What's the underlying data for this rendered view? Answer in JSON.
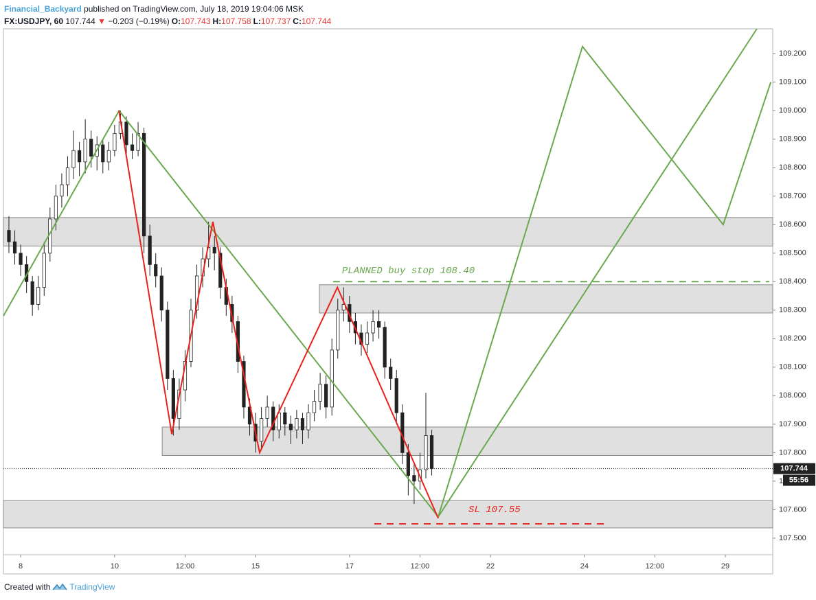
{
  "header": {
    "author": "Financial_Backyard",
    "published": "published on TradingView.com, July 18, 2019 19:04:06 MSK",
    "symbol": "FX:USDJPY, 60",
    "last": "107.744",
    "change": "−0.203 (−0.19%)",
    "quote": [
      {
        "label": "O:",
        "value": "107.743"
      },
      {
        "label": "H:",
        "value": "107.758"
      },
      {
        "label": "L:",
        "value": "107.737"
      },
      {
        "label": "C:",
        "value": "107.744"
      }
    ]
  },
  "footer": {
    "text": "Created with",
    "brand": "TradingView"
  },
  "chart_data": {
    "type": "candlestick",
    "xlim": [
      -8.8,
      384.2
    ],
    "ylim": [
      107.442,
      109.287
    ],
    "grid": false,
    "xticks": [
      {
        "value": 0,
        "label": "8"
      },
      {
        "value": 48,
        "label": "10"
      },
      {
        "value": 84,
        "label": "12:00"
      },
      {
        "value": 120,
        "label": "15"
      },
      {
        "value": 168,
        "label": "17"
      },
      {
        "value": 204,
        "label": "12:00"
      },
      {
        "value": 240,
        "label": "22"
      },
      {
        "value": 288,
        "label": "24"
      },
      {
        "value": 324,
        "label": "12:00"
      },
      {
        "value": 360,
        "label": "29"
      }
    ],
    "yticks": [
      {
        "value": 107.5,
        "label": "107.500"
      },
      {
        "value": 107.6,
        "label": "107.600"
      },
      {
        "value": 107.7,
        "label": "107.700"
      },
      {
        "value": 107.8,
        "label": "107.800"
      },
      {
        "value": 107.9,
        "label": "107.900"
      },
      {
        "value": 108.0,
        "label": "108.000"
      },
      {
        "value": 108.1,
        "label": "108.100"
      },
      {
        "value": 108.2,
        "label": "108.200"
      },
      {
        "value": 108.3,
        "label": "108.300"
      },
      {
        "value": 108.4,
        "label": "108.400"
      },
      {
        "value": 108.5,
        "label": "108.500"
      },
      {
        "value": 108.6,
        "label": "108.600"
      },
      {
        "value": 108.7,
        "label": "108.700"
      },
      {
        "value": 108.8,
        "label": "108.800"
      },
      {
        "value": 108.9,
        "label": "108.900"
      },
      {
        "value": 109.0,
        "label": "109.000"
      },
      {
        "value": 109.1,
        "label": "109.100"
      },
      {
        "value": 109.2,
        "label": "109.200"
      }
    ],
    "x": [
      -6,
      -3,
      0,
      3,
      6,
      9,
      12,
      15,
      18,
      21,
      24,
      27,
      30,
      33,
      36,
      39,
      42,
      45,
      48,
      51,
      54,
      57,
      60,
      63,
      66,
      69,
      72,
      75,
      78,
      81,
      84,
      87,
      90,
      93,
      96,
      99,
      102,
      105,
      108,
      111,
      114,
      117,
      120,
      123,
      126,
      129,
      132,
      135,
      138,
      141,
      144,
      147,
      150,
      153,
      156,
      159,
      162,
      165,
      168,
      171,
      174,
      177,
      180,
      183,
      186,
      189,
      192,
      195,
      198,
      201,
      204,
      207,
      210
    ],
    "ohlc": [
      [
        108.58,
        108.63,
        108.5,
        108.54
      ],
      [
        108.54,
        108.58,
        108.46,
        108.5
      ],
      [
        108.5,
        108.53,
        108.42,
        108.46
      ],
      [
        108.46,
        108.49,
        108.36,
        108.4
      ],
      [
        108.4,
        108.42,
        108.28,
        108.32
      ],
      [
        108.32,
        108.42,
        108.3,
        108.38
      ],
      [
        108.38,
        108.54,
        108.35,
        108.5
      ],
      [
        108.5,
        108.66,
        108.47,
        108.62
      ],
      [
        108.62,
        108.74,
        108.58,
        108.7
      ],
      [
        108.7,
        108.78,
        108.66,
        108.74
      ],
      [
        108.74,
        108.84,
        108.7,
        108.8
      ],
      [
        108.8,
        108.93,
        108.76,
        108.86
      ],
      [
        108.86,
        108.89,
        108.77,
        108.82
      ],
      [
        108.82,
        108.97,
        108.78,
        108.9
      ],
      [
        108.9,
        108.93,
        108.8,
        108.84
      ],
      [
        108.84,
        108.91,
        108.79,
        108.88
      ],
      [
        108.88,
        108.9,
        108.78,
        108.82
      ],
      [
        108.82,
        108.89,
        108.79,
        108.86
      ],
      [
        108.86,
        108.95,
        108.84,
        108.92
      ],
      [
        108.92,
        109.0,
        108.9,
        108.96
      ],
      [
        108.96,
        108.98,
        108.84,
        108.88
      ],
      [
        108.88,
        108.92,
        108.83,
        108.86
      ],
      [
        108.86,
        108.96,
        108.84,
        108.92
      ],
      [
        108.92,
        108.94,
        108.5,
        108.56
      ],
      [
        108.56,
        108.6,
        108.42,
        108.46
      ],
      [
        108.46,
        108.5,
        108.38,
        108.42
      ],
      [
        108.42,
        108.45,
        108.26,
        108.3
      ],
      [
        108.3,
        108.33,
        108.02,
        108.06
      ],
      [
        108.06,
        108.09,
        107.86,
        107.92
      ],
      [
        107.92,
        108.06,
        107.88,
        108.02
      ],
      [
        108.02,
        108.16,
        107.98,
        108.12
      ],
      [
        108.12,
        108.34,
        108.1,
        108.3
      ],
      [
        108.3,
        108.46,
        108.27,
        108.42
      ],
      [
        108.42,
        108.52,
        108.38,
        108.48
      ],
      [
        108.48,
        108.61,
        108.45,
        108.52
      ],
      [
        108.52,
        108.56,
        108.44,
        108.5
      ],
      [
        108.5,
        108.52,
        108.34,
        108.38
      ],
      [
        108.38,
        108.41,
        108.28,
        108.32
      ],
      [
        108.32,
        108.35,
        108.22,
        108.26
      ],
      [
        108.26,
        108.28,
        108.08,
        108.12
      ],
      [
        108.12,
        108.14,
        107.92,
        107.96
      ],
      [
        107.96,
        107.99,
        107.86,
        107.9
      ],
      [
        107.9,
        107.94,
        107.8,
        107.84
      ],
      [
        107.84,
        107.96,
        107.81,
        107.92
      ],
      [
        107.92,
        108.0,
        107.89,
        107.96
      ],
      [
        107.96,
        107.98,
        107.84,
        107.88
      ],
      [
        107.88,
        107.97,
        107.85,
        107.94
      ],
      [
        107.94,
        107.96,
        107.86,
        107.9
      ],
      [
        107.9,
        107.93,
        107.83,
        107.88
      ],
      [
        107.88,
        107.95,
        107.85,
        107.92
      ],
      [
        107.92,
        107.94,
        107.83,
        107.88
      ],
      [
        107.88,
        107.97,
        107.85,
        107.94
      ],
      [
        107.94,
        108.02,
        107.91,
        107.98
      ],
      [
        107.98,
        108.08,
        107.95,
        108.04
      ],
      [
        108.04,
        108.07,
        107.92,
        107.96
      ],
      [
        107.96,
        108.2,
        107.93,
        108.16
      ],
      [
        108.16,
        108.34,
        108.13,
        108.3
      ],
      [
        108.3,
        108.38,
        108.26,
        108.32
      ],
      [
        108.32,
        108.35,
        108.22,
        108.26
      ],
      [
        108.26,
        108.29,
        108.18,
        108.22
      ],
      [
        108.22,
        108.25,
        108.14,
        108.18
      ],
      [
        108.18,
        108.26,
        108.15,
        108.22
      ],
      [
        108.22,
        108.3,
        108.19,
        108.26
      ],
      [
        108.26,
        108.3,
        108.2,
        108.24
      ],
      [
        108.24,
        108.26,
        108.06,
        108.1
      ],
      [
        108.1,
        108.13,
        108.02,
        108.06
      ],
      [
        108.06,
        108.09,
        107.9,
        107.94
      ],
      [
        107.94,
        107.97,
        107.76,
        107.8
      ],
      [
        107.8,
        107.83,
        107.65,
        107.72
      ],
      [
        107.72,
        107.76,
        107.62,
        107.7
      ],
      [
        107.7,
        107.8,
        107.67,
        107.74
      ],
      [
        107.74,
        108.01,
        107.71,
        107.86
      ],
      [
        107.86,
        107.88,
        107.72,
        107.744
      ]
    ],
    "up_color": "#ffffff",
    "down_color": "#222222",
    "candle_stroke": "#222222",
    "zones": [
      {
        "x": -8.8,
        "low": 108.525,
        "high": 108.625
      },
      {
        "x": 152.6,
        "low": 108.29,
        "high": 108.389
      },
      {
        "x": 72.3,
        "low": 107.79,
        "high": 107.89
      },
      {
        "x": -8.8,
        "low": 107.536,
        "high": 107.632
      }
    ],
    "zone_color": "#e0e0e0",
    "lines": [
      {
        "color": "#6aa84f",
        "x": [
          -8.8,
          50.3,
          213.3,
          287,
          358.9,
          383.2
        ],
        "y": [
          108.28,
          109.0,
          107.575,
          109.225,
          108.6,
          109.1
        ]
      },
      {
        "color": "#6aa84f",
        "x": [
          213.3,
          376.1
        ],
        "y": [
          107.575,
          109.287
        ]
      },
      {
        "color": "#e8211b",
        "x": [
          50.2,
          77.2,
          98.2,
          122.1,
          161.8,
          213.3
        ],
        "y": [
          109.0,
          107.865,
          108.61,
          107.8,
          108.38,
          107.57
        ]
      }
    ],
    "levels": [
      {
        "label": "PLANNED buy stop 108.40",
        "value": 108.4,
        "x0": 159.6,
        "x1": 382.5,
        "color": "#6aa84f"
      },
      {
        "label": "SL 107.55",
        "value": 107.55,
        "x0": 180.7,
        "x1": 300,
        "color": "#e8211b"
      }
    ],
    "last_price": 107.744,
    "countdown": "55:56"
  }
}
